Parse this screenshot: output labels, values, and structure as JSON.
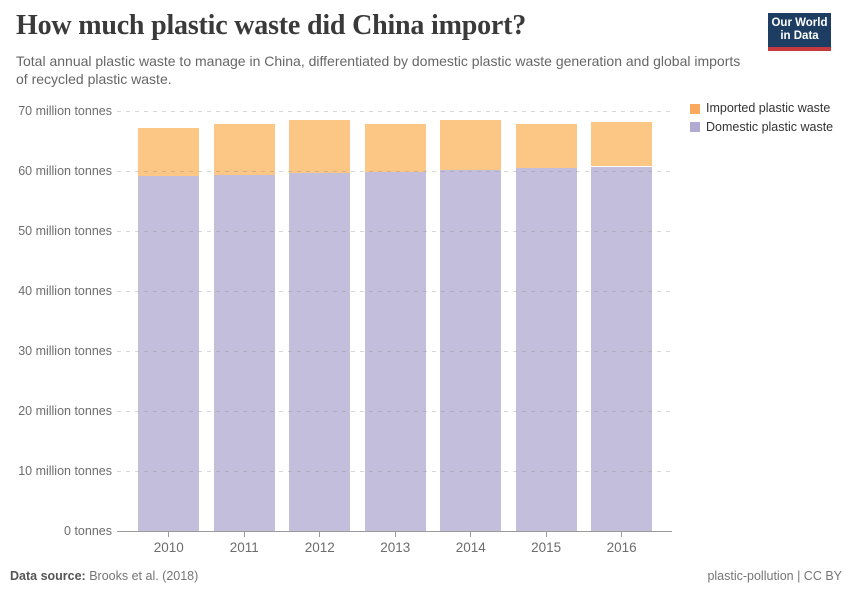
{
  "header": {
    "title": "How much plastic waste did China import?",
    "subtitle": "Total annual plastic waste to manage in China, differentiated by domestic plastic waste generation and global imports of recycled plastic waste.",
    "logo": {
      "line1": "Our World",
      "line2": "in Data",
      "bg_color": "#1d3d63",
      "accent_color": "#c5393f"
    }
  },
  "chart_data": {
    "type": "bar",
    "stacked": true,
    "title": "How much plastic waste did China import?",
    "categories": [
      "2010",
      "2011",
      "2012",
      "2013",
      "2014",
      "2015",
      "2016"
    ],
    "unit": "million tonnes",
    "series": [
      {
        "name": "Domestic plastic waste",
        "values": [
          59.1,
          59.35,
          59.6,
          59.9,
          60.2,
          60.45,
          60.75
        ],
        "bar_color": "#c3bedc",
        "legend_color": "#b1abd1"
      },
      {
        "name": "Imported plastic waste",
        "values": [
          8.0,
          8.45,
          8.9,
          7.9,
          8.25,
          7.35,
          7.35
        ],
        "bar_color": "#fcc784",
        "legend_color": "#f9aa5f"
      }
    ],
    "totals": [
      67.1,
      67.8,
      68.5,
      67.8,
      68.45,
      67.8,
      68.1
    ],
    "ylim": [
      0,
      70
    ],
    "y_ticks": [
      {
        "value": 70,
        "label": "70 million tonnes"
      },
      {
        "value": 60,
        "label": "60 million tonnes"
      },
      {
        "value": 50,
        "label": "50 million tonnes"
      },
      {
        "value": 40,
        "label": "40 million tonnes"
      },
      {
        "value": 30,
        "label": "30 million tonnes"
      },
      {
        "value": 20,
        "label": "20 million tonnes"
      },
      {
        "value": 10,
        "label": "10 million tonnes"
      },
      {
        "value": 0,
        "label": "0 tonnes"
      }
    ],
    "grid": "horizontal-dashed",
    "legend_position": "top-right",
    "legend_order": [
      "Imported plastic waste",
      "Domestic plastic waste"
    ]
  },
  "footer": {
    "source_label": "Data source:",
    "source_value": "Brooks et al. (2018)",
    "rights": "plastic-pollution | CC BY"
  }
}
